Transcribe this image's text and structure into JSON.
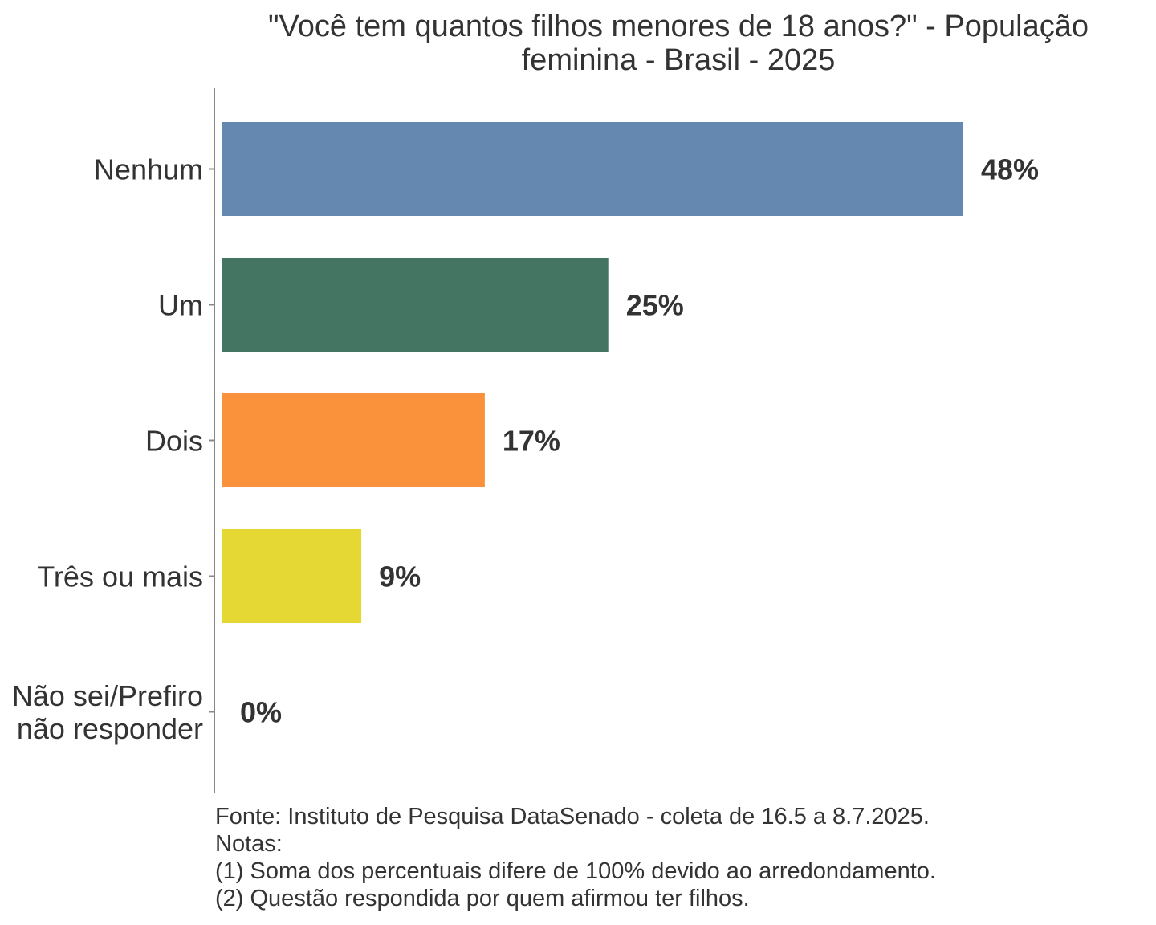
{
  "chart_data": {
    "type": "bar",
    "orientation": "horizontal",
    "title": "\"Você tem quantos filhos menores de 18 anos?\" - População feminina - Brasil - 2025",
    "title_lines": [
      "\"Você tem quantos filhos menores de 18 anos?\" - População",
      "feminina - Brasil - 2025"
    ],
    "categories": [
      "Nenhum",
      "Um",
      "Dois",
      "Três ou mais",
      "Não sei/Prefiro não responder"
    ],
    "category_lines": [
      [
        "Nenhum"
      ],
      [
        "Um"
      ],
      [
        "Dois"
      ],
      [
        "Três ou mais"
      ],
      [
        "Não sei/Prefiro",
        "não responder"
      ]
    ],
    "values": [
      48,
      25,
      17,
      9,
      0
    ],
    "value_labels": [
      "48%",
      "25%",
      "17%",
      "9%",
      "0%"
    ],
    "colors": [
      "#6488b0",
      "#447462",
      "#fa913b",
      "#e5d835",
      "#b0b0b0"
    ],
    "xlim": [
      0,
      52
    ],
    "grid": false,
    "legend": "none"
  },
  "caption": {
    "source": "Fonte: Instituto de Pesquisa DataSenado - coleta de 16.5 a 8.7.2025.",
    "notes_heading": "Notas:",
    "note_1": "(1) Soma dos percentuais difere de 100% devido ao arredondamento.",
    "note_2": "(2) Questão respondida por quem afirmou ter filhos."
  }
}
